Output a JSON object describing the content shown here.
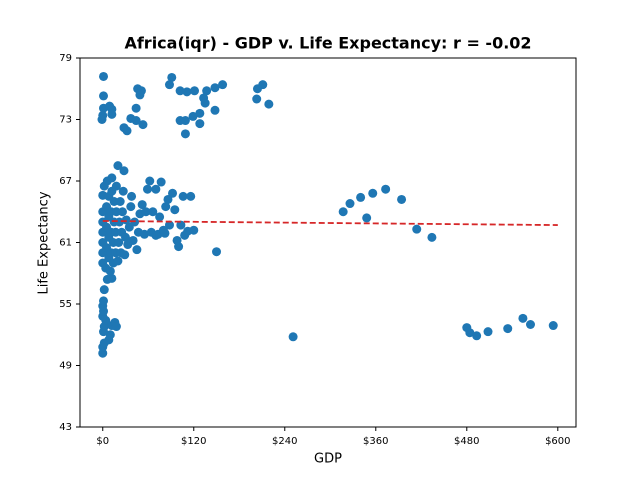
{
  "chart_data": {
    "type": "scatter",
    "title": "Africa(iqr) - GDP v. Life Expectancy: r = -0.02",
    "x_label": "GDP",
    "y_label": "Life Expectancy",
    "xlim": [
      -30,
      624
    ],
    "ylim": [
      43,
      79
    ],
    "xticks": [
      {
        "value": 0,
        "label": "$0"
      },
      {
        "value": 120,
        "label": "$120"
      },
      {
        "value": 240,
        "label": "$240"
      },
      {
        "value": 360,
        "label": "$360"
      },
      {
        "value": 480,
        "label": "$480"
      },
      {
        "value": 600,
        "label": "$600"
      }
    ],
    "yticks": [
      43,
      49,
      55,
      61,
      67,
      73,
      79
    ],
    "color": "#1f77b4",
    "x": [
      1,
      1,
      1,
      9,
      12,
      -1,
      0,
      12,
      46,
      51,
      49,
      44,
      37,
      28,
      32,
      53,
      44,
      91,
      88,
      102,
      111,
      121,
      137,
      148,
      158,
      211,
      204,
      203,
      219,
      133,
      148,
      128,
      119,
      109,
      102,
      109,
      128,
      135,
      317,
      326,
      340,
      348,
      356,
      373,
      394,
      414,
      434,
      480,
      484,
      493,
      508,
      534,
      554,
      564,
      594,
      251,
      150,
      0,
      0,
      2,
      8,
      10,
      1,
      2,
      4,
      0,
      1,
      0,
      1,
      12,
      16,
      18,
      2,
      6,
      12,
      0,
      0,
      0,
      0,
      0,
      0,
      0,
      2,
      4,
      5,
      5,
      5,
      6,
      8,
      8,
      8,
      8,
      10,
      11,
      11,
      11,
      12,
      12,
      14,
      14,
      15,
      15,
      17,
      17,
      18,
      18,
      20,
      20,
      21,
      22,
      23,
      24,
      25,
      26,
      27,
      28,
      29,
      30,
      31,
      33,
      35,
      37,
      38,
      40,
      42,
      45,
      47,
      49,
      52,
      55,
      57,
      59,
      62,
      64,
      66,
      70,
      73,
      75,
      77,
      80,
      83,
      86,
      88,
      92,
      95,
      98,
      100,
      103,
      106,
      108,
      112,
      116,
      120,
      70,
      82
    ],
    "values": [
      77.2,
      75.3,
      74.1,
      74.3,
      74,
      73,
      73.4,
      73.5,
      76,
      75.8,
      75.4,
      74.1,
      73.1,
      72.2,
      71.9,
      72.5,
      72.9,
      77.1,
      76.4,
      75.8,
      75.7,
      75.8,
      75.8,
      76.1,
      76.4,
      76.4,
      76,
      75,
      74.5,
      75.1,
      73.9,
      73.6,
      73.3,
      72.9,
      72.9,
      71.6,
      72.6,
      74.6,
      64,
      64.8,
      65.4,
      63.4,
      65.8,
      66.2,
      65.2,
      62.3,
      61.5,
      52.7,
      52.2,
      51.9,
      52.3,
      52.6,
      53.6,
      53,
      52.9,
      51.8,
      60.1,
      50.2,
      50.8,
      51.2,
      51.5,
      52,
      52.3,
      52.8,
      53.4,
      53.8,
      54.3,
      54.8,
      55.3,
      52.9,
      53.2,
      52.8,
      56.4,
      57.4,
      57.5,
      59,
      60,
      61,
      62,
      63,
      64,
      65.6,
      66.5,
      58.5,
      60.5,
      62.5,
      64.5,
      67,
      59.5,
      61.5,
      63.5,
      65.5,
      58.2,
      60,
      62,
      64,
      66,
      67.3,
      59,
      61,
      63,
      65,
      60,
      62,
      64,
      66.5,
      68.5,
      59.2,
      61,
      63,
      65,
      60,
      62,
      64,
      66,
      68,
      59.8,
      61.5,
      63.2,
      60.8,
      62.5,
      64.5,
      65.5,
      61.2,
      63,
      60.3,
      62,
      63.8,
      64.7,
      61.8,
      64,
      66.2,
      67,
      62,
      64,
      66.2,
      61.8,
      63.5,
      66.9,
      62.2,
      64.5,
      65.2,
      62.7,
      65.8,
      64.2,
      61.2,
      60.6,
      62.7,
      65.5,
      61.7,
      62.1,
      65.5,
      62.2,
      61.7,
      61.9
    ],
    "trendline": {
      "x": [
        0,
        600
      ],
      "values": [
        63.1,
        62.7
      ],
      "color": "#d62728",
      "style": "dashed"
    }
  }
}
